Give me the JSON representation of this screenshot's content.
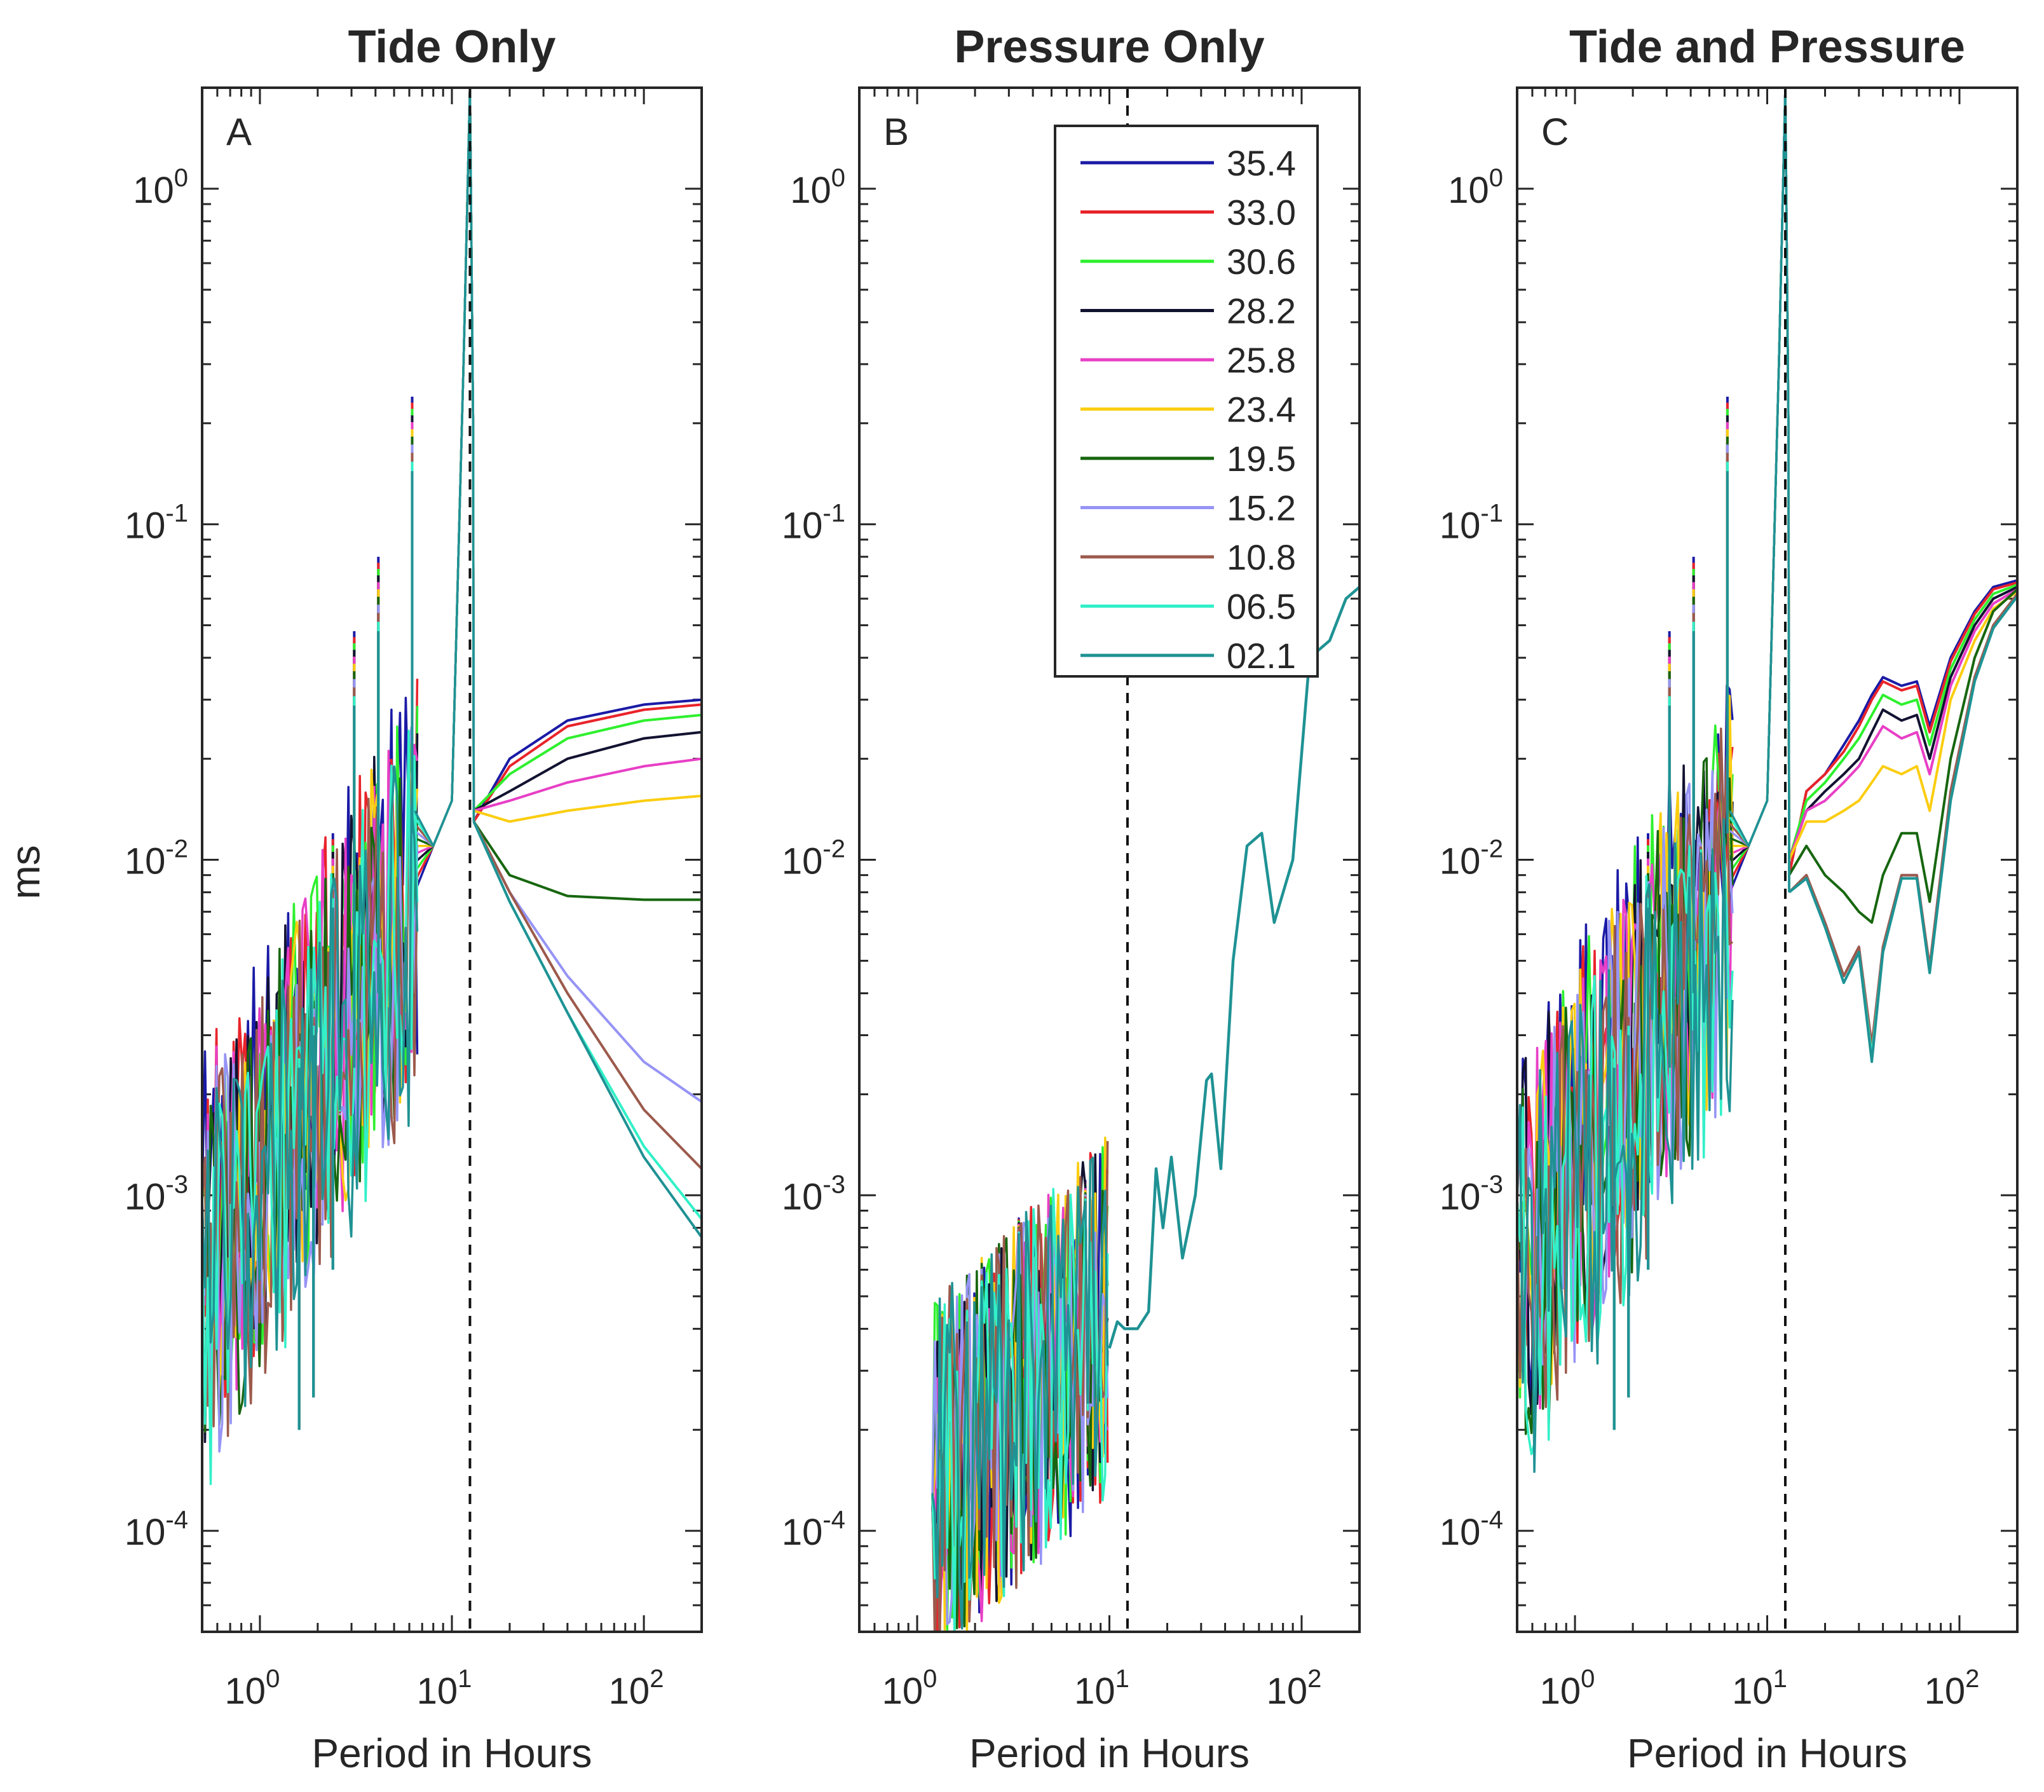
{
  "figure": {
    "ylabel": "ms",
    "xlabel": "Period in Hours",
    "tide_marker_hours": 12.42
  },
  "chart_data": [
    {
      "type": "line",
      "panel": "A",
      "title": "Tide Only",
      "xlabel": "Period in Hours",
      "ylabel": "ms",
      "xscale": "log",
      "yscale": "log",
      "xlim": [
        0.5,
        200
      ],
      "ylim": [
        5e-05,
        2
      ],
      "xticks": [
        {
          "base": "10",
          "exp": "0"
        },
        {
          "base": "10",
          "exp": "1"
        },
        {
          "base": "10",
          "exp": "2"
        }
      ],
      "yticks": [
        {
          "base": "10",
          "exp": "0"
        },
        {
          "base": "10",
          "exp": "-1"
        },
        {
          "base": "10",
          "exp": "-2"
        },
        {
          "base": "10",
          "exp": "-3"
        },
        {
          "base": "10",
          "exp": "-4"
        }
      ],
      "reference_line_x": 12.42,
      "low_freq_tail": [
        {
          "name": "35.4",
          "x": [
            13,
            20,
            40,
            100,
            200
          ],
          "y": [
            0.013,
            0.02,
            0.026,
            0.029,
            0.03
          ]
        },
        {
          "name": "33.0",
          "x": [
            13,
            20,
            40,
            100,
            200
          ],
          "y": [
            0.013,
            0.019,
            0.025,
            0.028,
            0.029
          ]
        },
        {
          "name": "30.6",
          "x": [
            13,
            20,
            40,
            100,
            200
          ],
          "y": [
            0.014,
            0.018,
            0.023,
            0.026,
            0.027
          ]
        },
        {
          "name": "28.2",
          "x": [
            13,
            20,
            40,
            100,
            200
          ],
          "y": [
            0.014,
            0.016,
            0.02,
            0.023,
            0.024
          ]
        },
        {
          "name": "25.8",
          "x": [
            13,
            20,
            40,
            100,
            200
          ],
          "y": [
            0.014,
            0.015,
            0.017,
            0.019,
            0.02
          ]
        },
        {
          "name": "23.4",
          "x": [
            13,
            20,
            40,
            100,
            200
          ],
          "y": [
            0.014,
            0.013,
            0.014,
            0.015,
            0.0155
          ]
        },
        {
          "name": "19.5",
          "x": [
            13,
            20,
            40,
            100,
            200
          ],
          "y": [
            0.013,
            0.009,
            0.0078,
            0.0076,
            0.0076
          ]
        },
        {
          "name": "15.2",
          "x": [
            13,
            20,
            40,
            100,
            200
          ],
          "y": [
            0.013,
            0.008,
            0.0045,
            0.0025,
            0.0019
          ]
        },
        {
          "name": "10.8",
          "x": [
            13,
            20,
            40,
            100,
            200
          ],
          "y": [
            0.013,
            0.008,
            0.004,
            0.0018,
            0.0012
          ]
        },
        {
          "name": "06.5",
          "x": [
            13,
            20,
            40,
            100,
            200
          ],
          "y": [
            0.013,
            0.0075,
            0.0035,
            0.0014,
            0.00085
          ]
        },
        {
          "name": "02.1",
          "x": [
            13,
            20,
            40,
            100,
            200
          ],
          "y": [
            0.013,
            0.0075,
            0.0035,
            0.0013,
            0.00075
          ]
        }
      ]
    },
    {
      "type": "line",
      "panel": "B",
      "title": "Pressure Only",
      "xlabel": "Period in Hours",
      "xscale": "log",
      "yscale": "log",
      "xlim": [
        0.5,
        200
      ],
      "ylim": [
        5e-05,
        2
      ],
      "xticks": [
        {
          "base": "10",
          "exp": "0"
        },
        {
          "base": "10",
          "exp": "1"
        },
        {
          "base": "10",
          "exp": "2"
        }
      ],
      "yticks": [
        {
          "base": "10",
          "exp": "0"
        },
        {
          "base": "10",
          "exp": "-1"
        },
        {
          "base": "10",
          "exp": "-2"
        },
        {
          "base": "10",
          "exp": "-3"
        },
        {
          "base": "10",
          "exp": "-4"
        }
      ],
      "reference_line_x": 12.42,
      "series": [
        {
          "name": "02.1",
          "x": [
            10,
            11,
            12,
            14,
            16,
            17.5,
            19,
            21,
            24,
            28,
            32,
            34,
            38,
            44,
            52,
            62,
            72,
            90,
            110,
            140,
            170,
            200
          ],
          "y": [
            0.00035,
            0.00042,
            0.0004,
            0.0004,
            0.00045,
            0.0012,
            0.0008,
            0.0013,
            0.00065,
            0.001,
            0.0022,
            0.0023,
            0.0012,
            0.005,
            0.011,
            0.012,
            0.0065,
            0.01,
            0.04,
            0.045,
            0.06,
            0.065
          ]
        }
      ]
    },
    {
      "type": "line",
      "panel": "C",
      "title": "Tide and Pressure",
      "xlabel": "Period in Hours",
      "xscale": "log",
      "yscale": "log",
      "xlim": [
        0.5,
        200
      ],
      "ylim": [
        5e-05,
        2
      ],
      "xticks": [
        {
          "base": "10",
          "exp": "0"
        },
        {
          "base": "10",
          "exp": "1"
        },
        {
          "base": "10",
          "exp": "2"
        }
      ],
      "yticks": [
        {
          "base": "10",
          "exp": "0"
        },
        {
          "base": "10",
          "exp": "-1"
        },
        {
          "base": "10",
          "exp": "-2"
        },
        {
          "base": "10",
          "exp": "-3"
        },
        {
          "base": "10",
          "exp": "-4"
        }
      ],
      "reference_line_x": 12.42,
      "low_freq_tail": [
        {
          "name": "35.4",
          "x": [
            13,
            16,
            20,
            25,
            30,
            35,
            40,
            50,
            60,
            70,
            90,
            120,
            150,
            200
          ],
          "y": [
            0.009,
            0.016,
            0.018,
            0.022,
            0.026,
            0.031,
            0.035,
            0.033,
            0.034,
            0.025,
            0.04,
            0.055,
            0.065,
            0.068
          ]
        },
        {
          "name": "33.0",
          "x": [
            13,
            16,
            20,
            25,
            30,
            35,
            40,
            50,
            60,
            70,
            90,
            120,
            150,
            200
          ],
          "y": [
            0.009,
            0.016,
            0.018,
            0.021,
            0.025,
            0.03,
            0.034,
            0.032,
            0.033,
            0.024,
            0.039,
            0.054,
            0.064,
            0.067
          ]
        },
        {
          "name": "30.6",
          "x": [
            13,
            16,
            20,
            25,
            30,
            35,
            40,
            50,
            60,
            70,
            90,
            120,
            150,
            200
          ],
          "y": [
            0.01,
            0.015,
            0.017,
            0.02,
            0.023,
            0.027,
            0.031,
            0.029,
            0.03,
            0.022,
            0.037,
            0.052,
            0.062,
            0.066
          ]
        },
        {
          "name": "28.2",
          "x": [
            13,
            16,
            20,
            25,
            30,
            35,
            40,
            50,
            60,
            70,
            90,
            120,
            150,
            200
          ],
          "y": [
            0.01,
            0.014,
            0.016,
            0.018,
            0.02,
            0.024,
            0.028,
            0.026,
            0.027,
            0.02,
            0.035,
            0.05,
            0.06,
            0.065
          ]
        },
        {
          "name": "25.8",
          "x": [
            13,
            16,
            20,
            25,
            30,
            35,
            40,
            50,
            60,
            70,
            90,
            120,
            150,
            200
          ],
          "y": [
            0.01,
            0.014,
            0.015,
            0.017,
            0.019,
            0.022,
            0.025,
            0.023,
            0.024,
            0.018,
            0.033,
            0.048,
            0.058,
            0.064
          ]
        },
        {
          "name": "23.4",
          "x": [
            13,
            16,
            20,
            25,
            30,
            35,
            40,
            50,
            60,
            70,
            90,
            120,
            150,
            200
          ],
          "y": [
            0.01,
            0.013,
            0.013,
            0.014,
            0.015,
            0.017,
            0.019,
            0.018,
            0.019,
            0.014,
            0.03,
            0.045,
            0.056,
            0.063
          ]
        },
        {
          "name": "19.5",
          "x": [
            13,
            16,
            20,
            25,
            30,
            35,
            40,
            50,
            60,
            70,
            90,
            120,
            150,
            200
          ],
          "y": [
            0.009,
            0.011,
            0.009,
            0.008,
            0.007,
            0.0065,
            0.009,
            0.012,
            0.012,
            0.0075,
            0.02,
            0.04,
            0.055,
            0.064
          ]
        },
        {
          "name": "15.2",
          "x": [
            13,
            16,
            20,
            25,
            30,
            35,
            40,
            50,
            60,
            70,
            90,
            120,
            150,
            200
          ],
          "y": [
            0.008,
            0.009,
            0.0065,
            0.0045,
            0.0055,
            0.0028,
            0.0055,
            0.009,
            0.009,
            0.0048,
            0.016,
            0.035,
            0.05,
            0.062
          ]
        },
        {
          "name": "10.8",
          "x": [
            13,
            16,
            20,
            25,
            30,
            35,
            40,
            50,
            60,
            70,
            90,
            120,
            150,
            200
          ],
          "y": [
            0.008,
            0.009,
            0.0065,
            0.0045,
            0.0055,
            0.0028,
            0.0055,
            0.009,
            0.009,
            0.0048,
            0.016,
            0.035,
            0.05,
            0.062
          ]
        },
        {
          "name": "06.5",
          "x": [
            13,
            16,
            20,
            25,
            30,
            35,
            40,
            50,
            60,
            70,
            90,
            120,
            150,
            200
          ],
          "y": [
            0.008,
            0.0088,
            0.0063,
            0.0043,
            0.0053,
            0.0026,
            0.0053,
            0.0088,
            0.0088,
            0.0046,
            0.015,
            0.034,
            0.049,
            0.061
          ]
        },
        {
          "name": "02.1",
          "x": [
            13,
            16,
            20,
            25,
            30,
            35,
            40,
            50,
            60,
            70,
            90,
            120,
            150,
            200
          ],
          "y": [
            0.008,
            0.0088,
            0.0063,
            0.0043,
            0.0053,
            0.0025,
            0.0053,
            0.0088,
            0.0088,
            0.0046,
            0.015,
            0.034,
            0.049,
            0.061
          ]
        }
      ]
    }
  ],
  "legend": {
    "entries": [
      {
        "label": "35.4",
        "color": "#1a1aa6"
      },
      {
        "label": "33.0",
        "color": "#e8242a"
      },
      {
        "label": "30.6",
        "color": "#2ef02e"
      },
      {
        "label": "28.2",
        "color": "#121231"
      },
      {
        "label": "25.8",
        "color": "#e83fc6"
      },
      {
        "label": "23.4",
        "color": "#fbcd10"
      },
      {
        "label": "19.5",
        "color": "#17660f"
      },
      {
        "label": "15.2",
        "color": "#9694f5"
      },
      {
        "label": "10.8",
        "color": "#9c5a4c"
      },
      {
        "label": "06.5",
        "color": "#32f0c8"
      },
      {
        "label": "02.1",
        "color": "#1f9294"
      }
    ]
  }
}
